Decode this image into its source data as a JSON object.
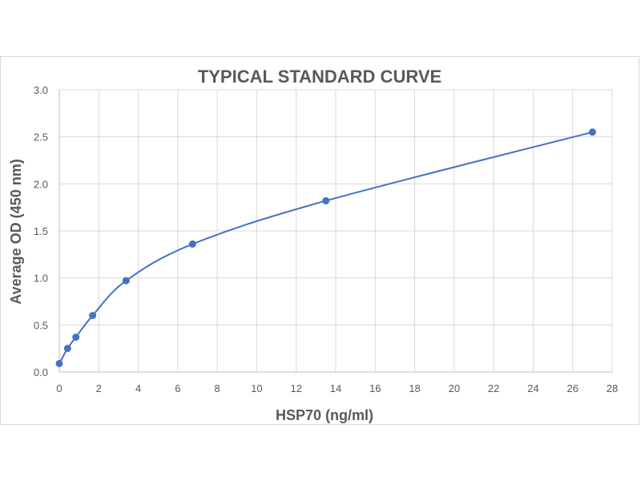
{
  "chart_data": {
    "type": "scatter",
    "title": "TYPICAL STANDARD CURVE",
    "xlabel": "HSP70 (ng/ml)",
    "ylabel": "Average OD (450 nm)",
    "xlim": [
      0,
      28
    ],
    "ylim": [
      0,
      3.0
    ],
    "x_ticks": [
      0,
      2,
      4,
      6,
      8,
      10,
      12,
      14,
      16,
      18,
      20,
      22,
      24,
      26,
      28
    ],
    "y_ticks": [
      0.0,
      0.5,
      1.0,
      1.5,
      2.0,
      2.5,
      3.0
    ],
    "y_tick_labels": [
      "0.0",
      "0.5",
      "1.0",
      "1.5",
      "2.0",
      "2.5",
      "3.0"
    ],
    "grid": true,
    "smooth_line": true,
    "series": [
      {
        "x": [
          0,
          0.42,
          0.84,
          1.69,
          3.38,
          6.75,
          13.5,
          27.0
        ],
        "y": [
          0.09,
          0.25,
          0.37,
          0.6,
          0.97,
          1.36,
          1.82,
          2.55
        ],
        "color": "#4472c4"
      }
    ]
  }
}
